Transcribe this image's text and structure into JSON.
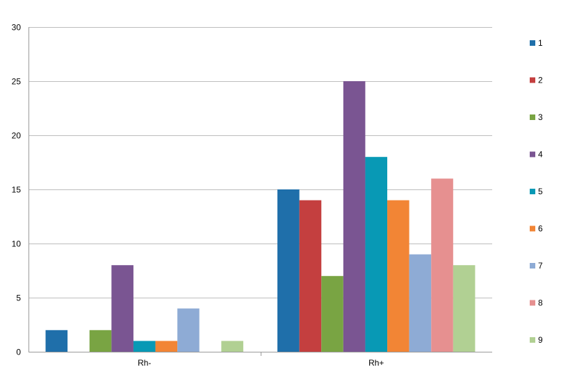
{
  "chart_data": {
    "type": "bar",
    "categories": [
      "Rh-",
      "Rh+"
    ],
    "series": [
      {
        "name": "1",
        "color": "#1F6FAA",
        "values": [
          2,
          15
        ]
      },
      {
        "name": "2",
        "color": "#C43F3F",
        "values": [
          0,
          14
        ]
      },
      {
        "name": "3",
        "color": "#79A443",
        "values": [
          2,
          7
        ]
      },
      {
        "name": "4",
        "color": "#7A5592",
        "values": [
          8,
          25
        ]
      },
      {
        "name": "5",
        "color": "#0899B5",
        "values": [
          1,
          18
        ]
      },
      {
        "name": "6",
        "color": "#F28535",
        "values": [
          1,
          14
        ]
      },
      {
        "name": "7",
        "color": "#8EABD5",
        "values": [
          4,
          9
        ]
      },
      {
        "name": "8",
        "color": "#E69090",
        "values": [
          0,
          16
        ]
      },
      {
        "name": "9",
        "color": "#B1D093",
        "values": [
          1,
          8
        ]
      }
    ],
    "y_ticks": [
      "0",
      "5",
      "10",
      "15",
      "20",
      "25",
      "30"
    ],
    "ylim": [
      0,
      30
    ],
    "grid": true,
    "legend_position": "right"
  }
}
